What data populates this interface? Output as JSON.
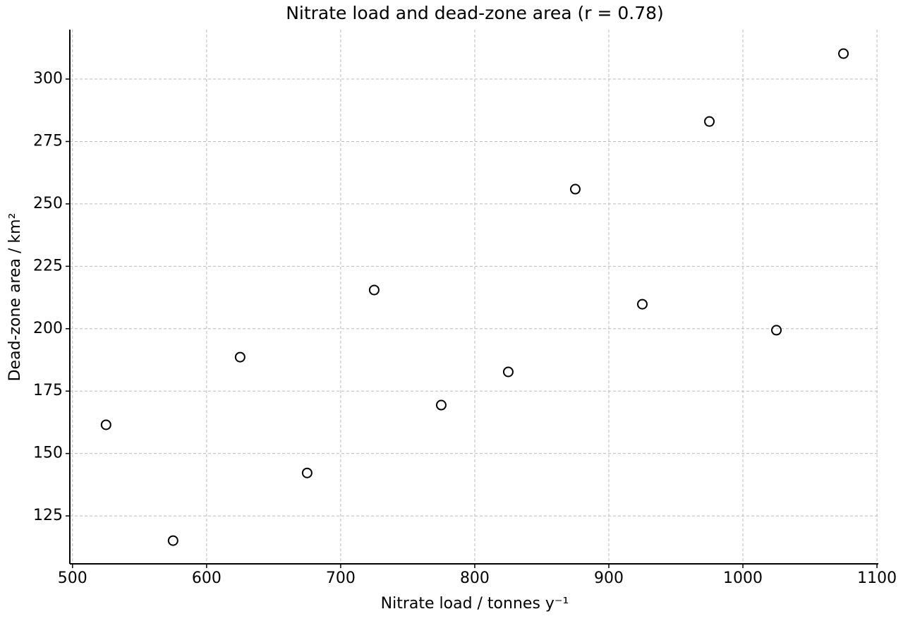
{
  "chart_data": {
    "type": "scatter",
    "title": "Nitrate load and dead-zone area (r = 0.78)",
    "x_label": "Nitrate load / tonnes y⁻¹",
    "y_label": "Dead-zone area / km²",
    "x": [
      525,
      575,
      625,
      675,
      725,
      775,
      825,
      875,
      925,
      975,
      1025,
      1075
    ],
    "series": [
      {
        "color": "#000000",
        "values": [
          161.5,
          115.1,
          188.6,
          142.2,
          215.5,
          169.4,
          182.7,
          255.9,
          209.8,
          283,
          199.4,
          310.2
        ]
      }
    ],
    "xlim": [
      498,
      1101
    ],
    "ylim": [
      105.8,
      319.8
    ],
    "xticks": [
      500,
      600,
      700,
      800,
      900,
      1000,
      1100
    ],
    "yticks": [
      125,
      150,
      175,
      200,
      225,
      250,
      275,
      300
    ],
    "grid": true
  }
}
